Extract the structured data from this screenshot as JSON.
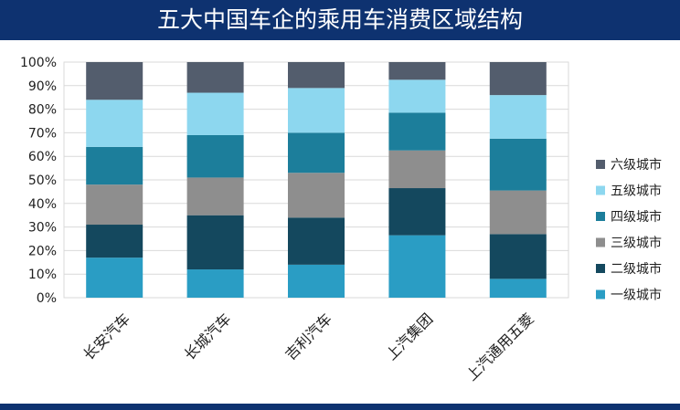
{
  "title": "五大中国车企的乘用车消费区域结构",
  "chart_data": {
    "type": "bar",
    "stacked": true,
    "percent": true,
    "categories": [
      "长安汽车",
      "长城汽车",
      "吉利汽车",
      "上汽集团",
      "上汽通用五菱"
    ],
    "series": [
      {
        "name": "一级城市",
        "color": "#2a9dc4",
        "values": [
          17,
          12,
          14,
          26.5,
          8
        ]
      },
      {
        "name": "二级城市",
        "color": "#14485e",
        "values": [
          14,
          23,
          20,
          20,
          19
        ]
      },
      {
        "name": "三级城市",
        "color": "#8e8e8e",
        "values": [
          17,
          16,
          19,
          16,
          18.5
        ]
      },
      {
        "name": "四级城市",
        "color": "#1c7e9b",
        "values": [
          16,
          18,
          17,
          16,
          22
        ]
      },
      {
        "name": "五级城市",
        "color": "#8dd7ef",
        "values": [
          20,
          18,
          19,
          14,
          18.5
        ]
      },
      {
        "name": "六级城市",
        "color": "#535d6d",
        "values": [
          16,
          13,
          11,
          7.5,
          14
        ]
      }
    ],
    "yticks": [
      "0%",
      "10%",
      "20%",
      "30%",
      "40%",
      "50%",
      "60%",
      "70%",
      "80%",
      "90%",
      "100%"
    ],
    "ylim": [
      0,
      100
    ],
    "grid": true,
    "legend": "right"
  }
}
